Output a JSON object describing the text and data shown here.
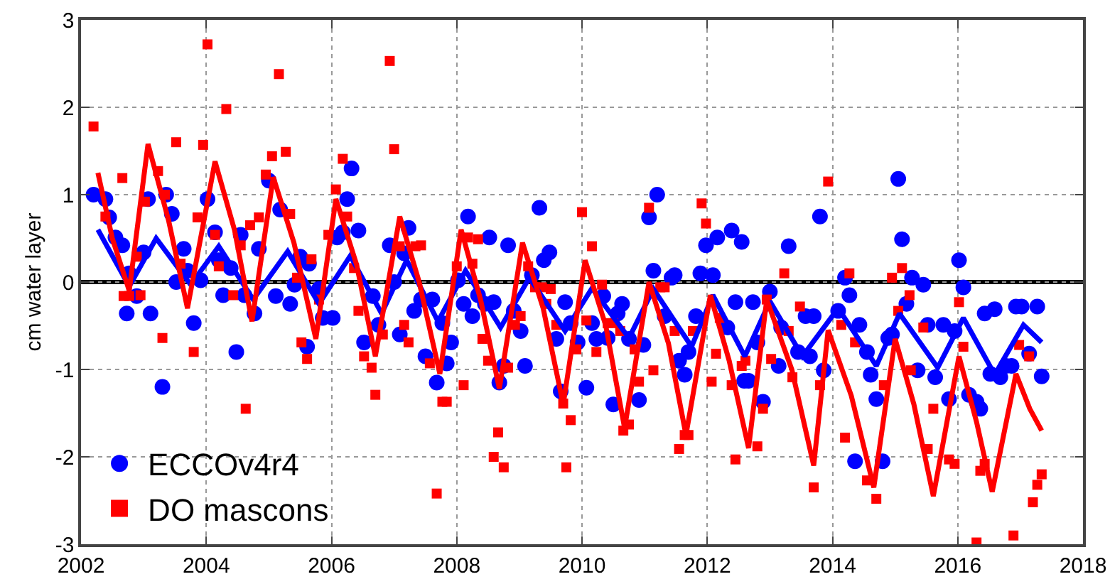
{
  "chart_data": {
    "type": "scatter",
    "ylabel": "cm water layer",
    "xlim": [
      2002,
      2018
    ],
    "xticks": [
      2002,
      2004,
      2006,
      2008,
      2010,
      2012,
      2014,
      2016,
      2018
    ],
    "ylim": [
      -3,
      3
    ],
    "yticks": [
      -3,
      -2,
      -1,
      0,
      1,
      2,
      3
    ],
    "grid": true,
    "legend": "bottom left",
    "ref_lines": [
      {
        "axis": "y",
        "value": 0,
        "color": "#000000"
      }
    ],
    "series": [
      {
        "name": "ECCOv4r4",
        "marker": "circle",
        "color": "#0000ff",
        "x": [
          2002.2,
          2002.39,
          2002.45,
          2002.55,
          2002.66,
          2002.73,
          2002.77,
          2002.89,
          2003.0,
          2003.07,
          2003.11,
          2003.3,
          2003.36,
          2003.45,
          2003.52,
          2003.64,
          2003.7,
          2003.8,
          2003.91,
          2004.02,
          2004.14,
          2004.2,
          2004.27,
          2004.39,
          2004.48,
          2004.55,
          2004.61,
          2004.77,
          2004.84,
          2005.0,
          2005.11,
          2005.18,
          2005.34,
          2005.41,
          2005.5,
          2005.61,
          2005.64,
          2005.8,
          2005.86,
          2006.02,
          2006.09,
          2006.18,
          2006.25,
          2006.32,
          2006.43,
          2006.52,
          2006.66,
          2006.75,
          2006.93,
          2007.0,
          2007.09,
          2007.16,
          2007.23,
          2007.32,
          2007.43,
          2007.5,
          2007.61,
          2007.68,
          2007.77,
          2007.84,
          2007.91,
          2008.02,
          2008.11,
          2008.18,
          2008.25,
          2008.34,
          2008.45,
          2008.52,
          2008.59,
          2008.68,
          2008.75,
          2008.82,
          2008.91,
          2009.02,
          2009.09,
          2009.2,
          2009.32,
          2009.39,
          2009.48,
          2009.59,
          2009.66,
          2009.73,
          2009.82,
          2009.93,
          2010.07,
          2010.16,
          2010.23,
          2010.34,
          2010.41,
          2010.5,
          2010.57,
          2010.64,
          2010.75,
          2010.91,
          2010.98,
          2011.07,
          2011.14,
          2011.2,
          2011.32,
          2011.43,
          2011.48,
          2011.55,
          2011.64,
          2011.7,
          2011.82,
          2011.89,
          2011.98,
          2012.09,
          2012.16,
          2012.32,
          2012.39,
          2012.45,
          2012.55,
          2012.59,
          2012.66,
          2012.73,
          2012.8,
          2012.89,
          2013.0,
          2013.14,
          2013.18,
          2013.3,
          2013.45,
          2013.57,
          2013.64,
          2013.7,
          2013.8,
          2013.86,
          2014.09,
          2014.2,
          2014.27,
          2014.36,
          2014.43,
          2014.55,
          2014.61,
          2014.7,
          2014.8,
          2014.89,
          2014.95,
          2015.05,
          2015.11,
          2015.18,
          2015.27,
          2015.36,
          2015.45,
          2015.52,
          2015.64,
          2015.77,
          2015.86,
          2015.95,
          2016.02,
          2016.09,
          2016.18,
          2016.3,
          2016.36,
          2016.43,
          2016.52,
          2016.59,
          2016.68,
          2016.77,
          2016.86,
          2016.93,
          2017.02,
          2017.14,
          2017.27,
          2017.34
        ],
        "values": [
          1.0,
          0.95,
          0.74,
          0.51,
          0.42,
          -0.36,
          0.1,
          -0.16,
          0.34,
          0.95,
          -0.36,
          -1.2,
          1.0,
          0.78,
          0,
          0.38,
          0.13,
          -0.47,
          0.02,
          0.95,
          0.57,
          0.25,
          -0.15,
          0.16,
          -0.8,
          0.54,
          -0.15,
          -0.36,
          0.38,
          1.16,
          -0.16,
          0.83,
          -0.25,
          -0.03,
          0.29,
          -0.74,
          0.21,
          -0.08,
          -0.41,
          -0.41,
          0.51,
          0.57,
          0.95,
          1.3,
          0.59,
          -0.69,
          -0.16,
          -0.49,
          0.42,
          0,
          -0.6,
          0.33,
          0.62,
          -0.33,
          -0.2,
          -0.85,
          -0.2,
          -1.15,
          -0.47,
          -0.93,
          -0.69,
          0.02,
          -0.25,
          0.75,
          -0.39,
          -0.15,
          -0.25,
          0.51,
          -0.23,
          -1.15,
          -0.96,
          0.42,
          -0.33,
          -0.56,
          -0.96,
          0.08,
          0.85,
          0.25,
          0.34,
          -0.65,
          -1.25,
          -0.23,
          -0.47,
          -0.69,
          -1.21,
          -0.47,
          -0.65,
          -0.16,
          -0.64,
          -1.4,
          -0.36,
          -0.25,
          -0.65,
          -1.35,
          -0.72,
          0.74,
          0.13,
          1.0,
          -0.39,
          0.05,
          0.08,
          -0.9,
          -1.06,
          -0.8,
          -0.39,
          0.1,
          0.42,
          0.08,
          0.51,
          -0.52,
          0.59,
          -0.23,
          0.46,
          -1.13,
          -1.13,
          -0.23,
          -0.69,
          -1.37,
          -0.11,
          -0.96,
          -0.52,
          0.41,
          -0.8,
          -0.39,
          -0.85,
          -0.39,
          0.75,
          -1.01,
          -0.33,
          0.05,
          -0.15,
          -2.05,
          -0.49,
          -0.8,
          -1.06,
          -1.34,
          -2.05,
          -0.64,
          -0.6,
          1.18,
          0.49,
          -0.25,
          0.05,
          -1.01,
          -0.03,
          -0.49,
          -1.09,
          -0.49,
          -1.34,
          -0.56,
          0.25,
          -0.06,
          -1.29,
          -1.37,
          -1.45,
          -0.36,
          -1.05,
          -0.31,
          -1.09,
          -0.96,
          -0.96,
          -0.28,
          -0.28,
          -0.82,
          -0.28,
          -1.08
        ]
      },
      {
        "name": "DO mascons",
        "marker": "square",
        "color": "#ff0000",
        "x": [
          2002.2,
          2002.39,
          2002.66,
          2002.68,
          2002.77,
          2002.89,
          2002.95,
          2003.02,
          2003.23,
          2003.3,
          2003.34,
          2003.52,
          2003.59,
          2003.8,
          2003.86,
          2003.95,
          2004.02,
          2004.14,
          2004.2,
          2004.32,
          2004.43,
          2004.55,
          2004.63,
          2004.7,
          2004.84,
          2004.95,
          2005.05,
          2005.16,
          2005.27,
          2005.34,
          2005.45,
          2005.52,
          2005.61,
          2005.68,
          2005.8,
          2005.95,
          2006.07,
          2006.18,
          2006.25,
          2006.36,
          2006.43,
          2006.52,
          2006.64,
          2006.7,
          2006.82,
          2006.93,
          2007.0,
          2007.09,
          2007.16,
          2007.23,
          2007.34,
          2007.43,
          2007.57,
          2007.68,
          2007.77,
          2007.84,
          2008.0,
          2008.11,
          2008.18,
          2008.25,
          2008.34,
          2008.41,
          2008.5,
          2008.59,
          2008.66,
          2008.75,
          2008.82,
          2008.93,
          2009.02,
          2009.14,
          2009.25,
          2009.36,
          2009.43,
          2009.5,
          2009.59,
          2009.7,
          2009.75,
          2009.82,
          2009.91,
          2010.0,
          2010.07,
          2010.16,
          2010.23,
          2010.32,
          2010.41,
          2010.5,
          2010.61,
          2010.66,
          2010.75,
          2010.84,
          2010.91,
          2011.07,
          2011.14,
          2011.25,
          2011.32,
          2011.48,
          2011.55,
          2011.64,
          2011.7,
          2011.77,
          2011.91,
          2011.98,
          2012.07,
          2012.14,
          2012.2,
          2012.39,
          2012.45,
          2012.55,
          2012.61,
          2012.8,
          2012.89,
          2012.95,
          2013.02,
          2013.23,
          2013.3,
          2013.36,
          2013.48,
          2013.7,
          2013.8,
          2013.93,
          2014.14,
          2014.2,
          2014.27,
          2014.36,
          2014.55,
          2014.7,
          2014.82,
          2014.95,
          2015.05,
          2015.11,
          2015.23,
          2015.25,
          2015.45,
          2015.52,
          2015.61,
          2015.86,
          2015.95,
          2016.02,
          2016.09,
          2016.3,
          2016.36,
          2016.43,
          2016.89,
          2016.98,
          2017.14,
          2017.2,
          2017.27,
          2017.34
        ],
        "values": [
          1.78,
          0.75,
          1.19,
          -0.16,
          -0.16,
          0.29,
          -0.15,
          0.92,
          1.27,
          -0.64,
          1.0,
          1.6,
          0.21,
          -0.8,
          0.74,
          1.57,
          2.72,
          0.54,
          0.18,
          1.98,
          -0.15,
          0.42,
          -1.45,
          0.65,
          0.74,
          1.23,
          1.44,
          2.38,
          1.49,
          0.78,
          0.05,
          -0.69,
          -0.88,
          0.26,
          -0.2,
          0.54,
          1.06,
          1.41,
          0.75,
          0.16,
          -0.33,
          -0.85,
          -0.98,
          -1.29,
          -0.6,
          2.53,
          1.52,
          0.41,
          -0.49,
          -0.69,
          0.41,
          0.42,
          -0.93,
          -2.42,
          -1.37,
          -1.37,
          0.18,
          -1.18,
          0.51,
          0.21,
          0.49,
          -0.65,
          -0.9,
          -2.0,
          -1.72,
          -2.12,
          -0.98,
          -0.49,
          -0.39,
          0.18,
          -0.06,
          -0.06,
          -0.25,
          -0.08,
          -0.49,
          -1.39,
          -2.12,
          -1.58,
          -0.77,
          0.8,
          -0.44,
          0.41,
          -0.8,
          -0.03,
          -0.47,
          -0.47,
          -0.56,
          -1.7,
          -1.63,
          -0.77,
          -1.14,
          0.85,
          -1.01,
          -0.06,
          -0.06,
          -0.56,
          -1.91,
          -1.75,
          -1.75,
          -0.56,
          0.9,
          0.67,
          -1.14,
          -0.82,
          -0.41,
          -1.18,
          -2.03,
          -0.96,
          -0.9,
          -1.88,
          -1.45,
          -0.2,
          -0.88,
          0.1,
          -0.56,
          -1.09,
          -0.28,
          -2.35,
          -1.18,
          1.15,
          -0.49,
          -1.78,
          0.1,
          -0.69,
          -2.27,
          -2.48,
          -1.18,
          0.05,
          -0.33,
          0.16,
          -0.15,
          -1.01,
          -0.52,
          -1.91,
          -1.45,
          -2.03,
          -2.08,
          -0.23,
          -0.74,
          -2.98,
          -2.16,
          -2.08,
          -2.9,
          -0.72,
          -0.85,
          -2.52,
          -2.32,
          -2.2
        ]
      },
      {
        "type": "line",
        "color": "#0000ff",
        "x": [
          2002.27,
          2002.77,
          2003.2,
          2003.75,
          2004.2,
          2004.75,
          2005.3,
          2005.8,
          2006.3,
          2006.8,
          2007.2,
          2007.7,
          2008.14,
          2008.7,
          2009.16,
          2009.73,
          2010.16,
          2010.75,
          2011.14,
          2011.75,
          2012.09,
          2012.6,
          2013.0,
          2013.52,
          2014.09,
          2014.7,
          2015.07,
          2015.68,
          2016.09,
          2016.59,
          2017.05,
          2017.34
        ],
        "values": [
          0.6,
          -0.05,
          0.5,
          -0.03,
          0.41,
          -0.2,
          0.35,
          -0.25,
          0.3,
          -0.36,
          0.25,
          -0.45,
          0.13,
          -0.52,
          0.05,
          -0.56,
          -0.07,
          -0.64,
          -0.08,
          -0.74,
          -0.15,
          -0.85,
          -0.22,
          -0.85,
          -0.3,
          -0.96,
          -0.36,
          -0.98,
          -0.41,
          -1.06,
          -0.49,
          -0.69
        ]
      },
      {
        "type": "line",
        "color": "#ff0000",
        "x": [
          2002.27,
          2002.5,
          2002.77,
          2003.07,
          2003.4,
          2003.7,
          2004.14,
          2004.45,
          2004.73,
          2005.07,
          2005.4,
          2005.75,
          2006.07,
          2006.4,
          2006.7,
          2007.09,
          2007.4,
          2007.73,
          2008.07,
          2008.38,
          2008.68,
          2009.05,
          2009.38,
          2009.7,
          2010.05,
          2010.38,
          2010.68,
          2011.07,
          2011.38,
          2011.66,
          2012.05,
          2012.35,
          2012.66,
          2012.95,
          2013.35,
          2013.7,
          2013.93,
          2014.3,
          2014.66,
          2015.0,
          2015.3,
          2015.61,
          2016.02,
          2016.3,
          2016.55,
          2016.93,
          2017.15,
          2017.34
        ],
        "values": [
          1.25,
          0.5,
          -0.1,
          1.58,
          0.7,
          -0.3,
          1.38,
          0.6,
          -0.45,
          1.2,
          0.45,
          -0.65,
          0.95,
          0.2,
          -0.85,
          0.75,
          0.0,
          -1.05,
          0.6,
          -0.2,
          -1.22,
          0.45,
          -0.3,
          -1.4,
          0.25,
          -0.5,
          -1.67,
          0.0,
          -0.7,
          -1.75,
          -0.15,
          -0.9,
          -1.9,
          -0.2,
          -1.0,
          -2.1,
          -0.55,
          -1.3,
          -2.35,
          -0.65,
          -1.4,
          -2.45,
          -0.85,
          -1.6,
          -2.4,
          -1.05,
          -1.45,
          -1.7
        ]
      }
    ]
  }
}
